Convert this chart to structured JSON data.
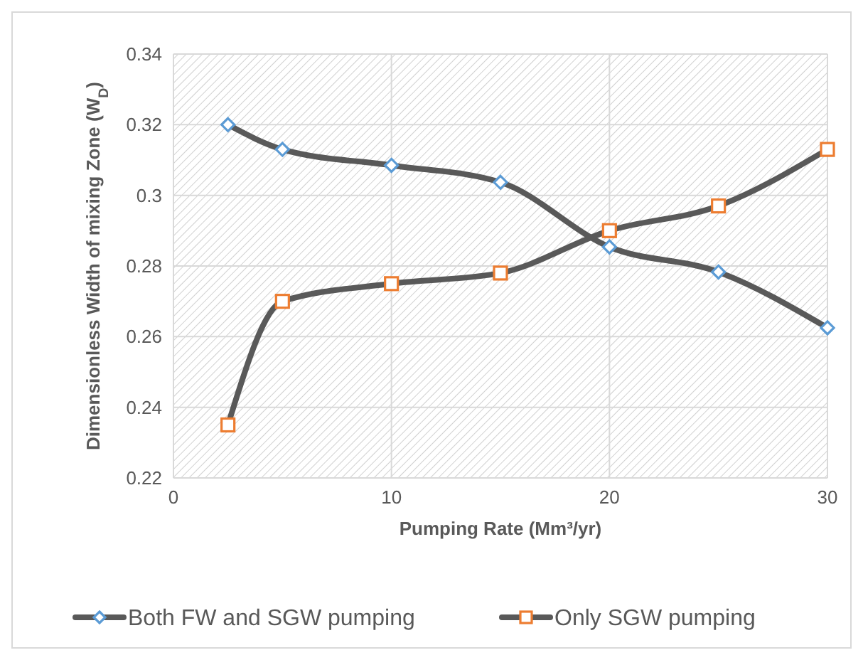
{
  "chart_data": {
    "type": "line",
    "xlabel": "Pumping Rate (Mm³/yr)",
    "ylabel": "Dimensionless Width  of mixing Zone (W$_{D}$)",
    "xlim": [
      0,
      30
    ],
    "xticks": [
      0,
      10,
      20,
      30
    ],
    "ylim": [
      0.22,
      0.34
    ],
    "yticks": [
      0.22,
      0.24,
      0.26,
      0.28,
      0.3,
      0.32,
      0.34
    ],
    "grid": true,
    "legend": "bottom",
    "series": [
      {
        "name": "Both FW and SGW pumping",
        "color": "#5b9bd5",
        "marker": "diamond",
        "x": [
          2.5,
          5,
          10,
          15,
          20,
          25,
          30
        ],
        "values": [
          0.32,
          0.313,
          0.3085,
          0.3037,
          0.2854,
          0.2783,
          0.2625
        ]
      },
      {
        "name": "Only SGW pumping",
        "color": "#ed7d31",
        "marker": "square",
        "x": [
          2.5,
          5,
          10,
          15,
          20,
          25,
          30
        ],
        "values": [
          0.235,
          0.27,
          0.275,
          0.278,
          0.29,
          0.297,
          0.313
        ]
      }
    ]
  }
}
